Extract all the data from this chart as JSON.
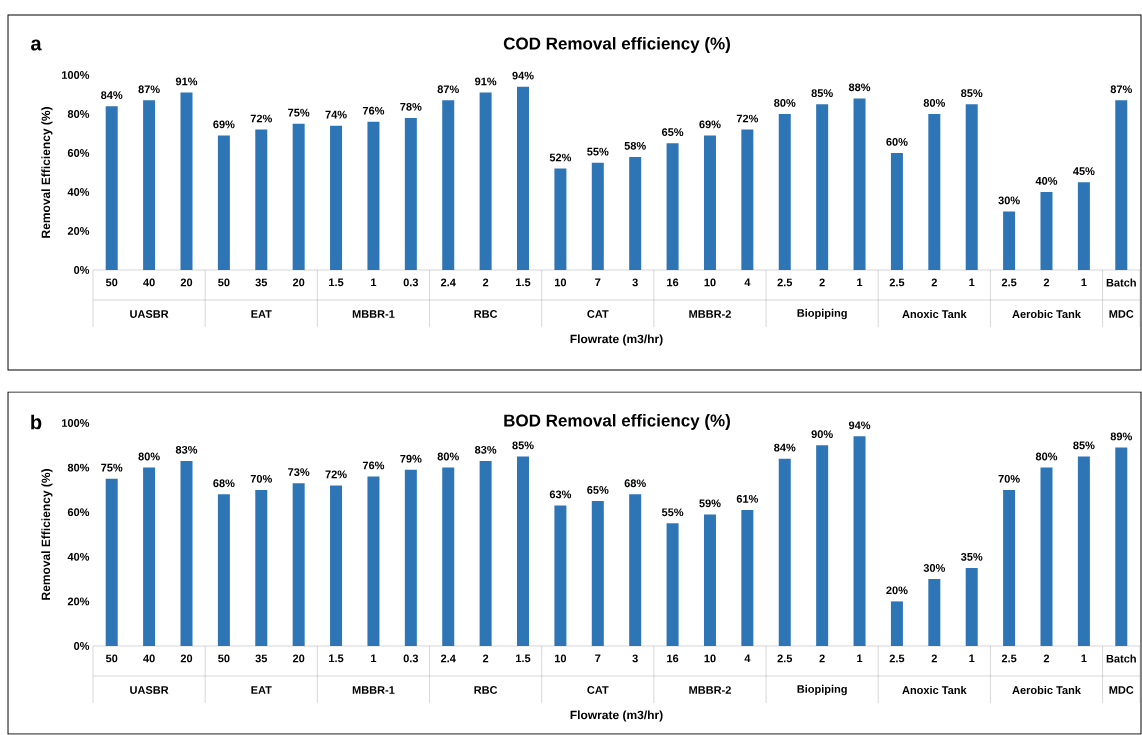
{
  "chart_data": [
    {
      "type": "bar",
      "title": "COD Removal efficiency (%)",
      "xlabel": "Flowrate (m3/hr)",
      "ylabel": "Removal Efficiency (%)",
      "categories": [
        "50",
        "40",
        "20",
        "50",
        "35",
        "20",
        "1.5",
        "1",
        "0.3",
        "2.4",
        "2",
        "1.5",
        "10",
        "7",
        "3",
        "16",
        "10",
        "4",
        "2.5",
        "2",
        "1",
        "2.5",
        "2",
        "1",
        "2.5",
        "2",
        "1",
        "Batch"
      ],
      "values": [
        84,
        87,
        91,
        69,
        72,
        75,
        74,
        76,
        78,
        87,
        91,
        94,
        52,
        55,
        58,
        65,
        69,
        72,
        80,
        85,
        88,
        60,
        80,
        85,
        30,
        40,
        45,
        87
      ],
      "value_labels": [
        "84%",
        "87%",
        "91%",
        "69%",
        "72%",
        "75%",
        "74%",
        "76%",
        "78%",
        "87%",
        "91%",
        "94%",
        "52%",
        "55%",
        "58%",
        "65%",
        "69%",
        "72%",
        "80%",
        "85%",
        "88%",
        "60%",
        "80%",
        "85%",
        "30%",
        "40%",
        "45%",
        "87%"
      ],
      "color": "#2e75b6",
      "ylim": [
        0,
        100
      ],
      "yticks": [
        {
          "value": 0,
          "label": "0%"
        },
        {
          "value": 20,
          "label": "20%"
        },
        {
          "value": 40,
          "label": "40%"
        },
        {
          "value": 60,
          "label": "60%"
        },
        {
          "value": 80,
          "label": "80%"
        },
        {
          "value": 100,
          "label": "100%"
        }
      ],
      "annotations": [
        "a",
        "UASBR",
        "EAT",
        "MBBR-1",
        "RBC",
        "CAT",
        "MBBR-2",
        "Biopiping",
        "Anoxic Tank",
        "Aerobic Tank",
        "MDC"
      ]
    },
    {
      "type": "bar",
      "title": "BOD Removal efficiency (%)",
      "xlabel": "Flowrate (m3/hr)",
      "ylabel": "Removal Efficiency (%)",
      "categories": [
        "50",
        "40",
        "20",
        "50",
        "35",
        "20",
        "1.5",
        "1",
        "0.3",
        "2.4",
        "2",
        "1.5",
        "10",
        "7",
        "3",
        "16",
        "10",
        "4",
        "2.5",
        "2",
        "1",
        "2.5",
        "2",
        "1",
        "2.5",
        "2",
        "1",
        "Batch"
      ],
      "values": [
        75,
        80,
        83,
        68,
        70,
        73,
        72,
        76,
        79,
        80,
        83,
        85,
        63,
        65,
        68,
        55,
        59,
        61,
        84,
        90,
        94,
        20,
        30,
        35,
        70,
        80,
        85,
        89
      ],
      "value_labels": [
        "75%",
        "80%",
        "83%",
        "68%",
        "70%",
        "73%",
        "72%",
        "76%",
        "79%",
        "80%",
        "83%",
        "85%",
        "63%",
        "65%",
        "68%",
        "55%",
        "59%",
        "61%",
        "84%",
        "90%",
        "94%",
        "20%",
        "30%",
        "35%",
        "70%",
        "80%",
        "85%",
        "89%"
      ],
      "color": "#2e75b6",
      "ylim": [
        0,
        100
      ],
      "yticks": [
        {
          "value": 0,
          "label": "0%"
        },
        {
          "value": 20,
          "label": "20%"
        },
        {
          "value": 40,
          "label": "40%"
        },
        {
          "value": 60,
          "label": "60%"
        },
        {
          "value": 80,
          "label": "80%"
        },
        {
          "value": 100,
          "label": "100%"
        }
      ],
      "annotations": [
        "b",
        "UASBR",
        "EAT",
        "MBBR-1",
        "RBC",
        "CAT",
        "MBBR-2",
        "Biopiping",
        "Anoxic Tank",
        "Aerobic Tank",
        "MDC"
      ]
    }
  ]
}
